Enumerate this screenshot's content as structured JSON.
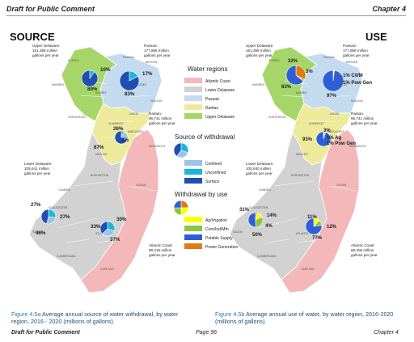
{
  "header": {
    "left": "Draft for Public Comment",
    "right": "Chapter 4"
  },
  "titles": {
    "source": "SOURCE",
    "use": "USE"
  },
  "colors": {
    "atlantic_coast": "#f4b8ba",
    "lower_delaware": "#d2d2d2",
    "passaic": "#c4dbef",
    "raritan": "#eeea9c",
    "upper_delaware": "#a6d66a",
    "confined": "#9dc3e6",
    "unconfined": "#16b8dc",
    "surface": "#1f4fb4",
    "ag_irrigation": "#ffff00",
    "com_ind_mfn": "#8cc63f",
    "potable_supply": "#2e5fd6",
    "power_generation": "#e07b10"
  },
  "legend": {
    "water_regions_title": "Water regions",
    "regions": [
      "Atlantic Coast",
      "Lower Delaware",
      "Passaic",
      "Raritan",
      "Upper Delaware"
    ],
    "source_title": "Source of withdrawal",
    "sources": [
      "Confined",
      "Unconfined",
      "Surface"
    ],
    "use_title": "Withdrawal by use",
    "uses": [
      "Ag/Irrigation",
      "Com/Ind/Mfn",
      "Potable Supply",
      "Power Generation"
    ]
  },
  "source_map": {
    "regions": [
      {
        "name": "Upper Delaware:",
        "value": "151,358 million",
        "unit": "gallons per year"
      },
      {
        "name": "Passaic:",
        "value": "177,866 million",
        "unit": "gallons per year"
      },
      {
        "name": "Raritan:",
        "value": "96,741 million",
        "unit": "gallons per year"
      },
      {
        "name": "Lower Delaware:",
        "value": "105,641 million",
        "unit": "gallons per year"
      },
      {
        "name": "Atlantic Coast:",
        "value": "88,415 million",
        "unit": "gallons per year"
      }
    ],
    "pies": [
      {
        "region": "Upper Delaware",
        "confined": 0,
        "unconfined": 10,
        "surface": 89,
        "labels": [
          "10%",
          "89%"
        ]
      },
      {
        "region": "Passaic",
        "confined": 0,
        "unconfined": 17,
        "surface": 83,
        "labels": [
          "17%",
          "83%"
        ]
      },
      {
        "region": "Raritan",
        "confined": 26,
        "unconfined": 7,
        "surface": 67,
        "labels": [
          "26%",
          "7%",
          "67%"
        ]
      },
      {
        "region": "Lower Delaware",
        "confined": 27,
        "unconfined": 27,
        "surface": 46,
        "labels": [
          "27%",
          "27%",
          "46%"
        ]
      },
      {
        "region": "Atlantic Coast",
        "confined": 33,
        "unconfined": 30,
        "surface": 37,
        "labels": [
          "30%",
          "33%",
          "37%"
        ]
      }
    ]
  },
  "use_map": {
    "regions": [
      {
        "name": "Upper Delaware:",
        "value": "151,358 million",
        "unit": "gallons per year"
      },
      {
        "name": "Passaic:",
        "value": "177,866 million",
        "unit": "gallons per year"
      },
      {
        "name": "Raritan:",
        "value": "96,741 million",
        "unit": "gallons per year"
      },
      {
        "name": "Lower Delaware:",
        "value": "105,640 million",
        "unit": "gallons per year"
      },
      {
        "name": "Atlantic Coast:",
        "value": "88,408 million",
        "unit": "gallons per year"
      }
    ],
    "pies": [
      {
        "region": "Upper Delaware",
        "ag": 0,
        "comind": 3,
        "potable": 63,
        "power": 32,
        "labels": [
          "32%",
          "3%",
          "63%"
        ]
      },
      {
        "region": "Passaic",
        "ag": 0,
        "comind": 1,
        "potable": 97,
        "power": 1,
        "labels": [
          "1% C/I/M",
          "1% Pow Gen",
          "97%"
        ]
      },
      {
        "region": "Raritan",
        "ag": 1,
        "comind": 3,
        "potable": 93,
        "power": 1,
        "labels": [
          "3%",
          "1% Ag",
          "1% Pow Gen",
          "93%"
        ]
      },
      {
        "region": "Lower Delaware",
        "ag": 14,
        "comind": 31,
        "potable": 50,
        "power": 4,
        "labels": [
          "31%",
          "14%",
          "4%",
          "50%"
        ]
      },
      {
        "region": "Atlantic Coast",
        "ag": 12,
        "comind": 11,
        "potable": 77,
        "power": 0,
        "labels": [
          "11%",
          "12%",
          "77%"
        ]
      }
    ]
  },
  "county_labels": [
    "SUSSEX",
    "PASSAIC",
    "BERGEN",
    "WARREN",
    "MORRIS",
    "ESSEX",
    "HUDSON",
    "UNION",
    "HUNTERDON",
    "SOMERSET",
    "MIDDLESEX",
    "MERCER",
    "MONMOUTH",
    "BURLINGTON",
    "OCEAN",
    "CAMDEN",
    "GLOUCESTER",
    "SALEM",
    "ATLANTIC",
    "CUMBERLAND",
    "CAPE MAY"
  ],
  "captions": {
    "a_fig": "Figure 4.5a",
    "a_text": " Average annual source of water withdrawal, by water",
    "a_text2": "region, 2016 - 2020 (millions of gallons).",
    "b_fig": "Figure 4.5b",
    "b_text": " Average annual use of water, by water region, 2016-2020",
    "b_text2": "(millions of gallons)."
  },
  "footer": {
    "left": "Draft for Public Comment",
    "center": "Page 96",
    "right": "Chapter 4"
  }
}
